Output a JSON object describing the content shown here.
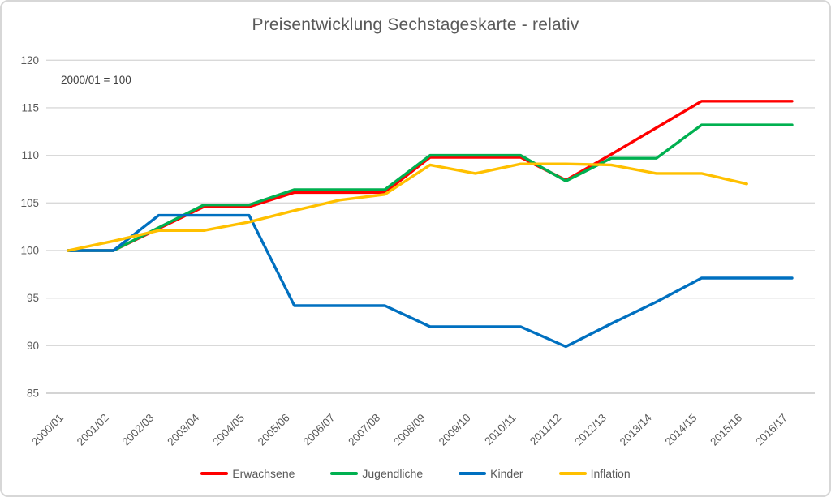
{
  "chart_data": {
    "type": "line",
    "title": "Preisentwicklung Sechstageskarte - relativ",
    "annotation": "2000/01 = 100",
    "categories": [
      "2000/01",
      "2001/02",
      "2002/03",
      "2003/04",
      "2004/05",
      "2005/06",
      "2006/07",
      "2007/08",
      "2008/09",
      "2009/10",
      "2010/11",
      "2011/12",
      "2012/13",
      "2013/14",
      "2014/15",
      "2015/16",
      "2016/17"
    ],
    "series": [
      {
        "name": "Erwachsene",
        "color": "#FF0000",
        "values": [
          100,
          100,
          102.3,
          104.6,
          104.6,
          106.1,
          106.1,
          106.1,
          109.8,
          109.8,
          109.8,
          107.4,
          110.1,
          112.9,
          115.7,
          115.7,
          115.7
        ]
      },
      {
        "name": "Jugendliche",
        "color": "#00B050",
        "values": [
          100,
          100,
          102.4,
          104.8,
          104.8,
          106.4,
          106.4,
          106.4,
          110,
          110,
          110,
          107.3,
          109.7,
          109.7,
          113.2,
          113.2,
          113.2
        ]
      },
      {
        "name": "Kinder",
        "color": "#0070C0",
        "values": [
          100,
          100,
          103.7,
          103.7,
          103.7,
          94.2,
          94.2,
          94.2,
          92,
          92,
          92,
          89.9,
          92.3,
          94.6,
          97.1,
          97.1,
          97.1
        ]
      },
      {
        "name": "Inflation",
        "color": "#FFC000",
        "values": [
          100,
          101,
          102.1,
          102.1,
          103,
          104.2,
          105.3,
          105.9,
          109,
          108.1,
          109.1,
          109.1,
          109,
          108.1,
          108.1,
          107,
          null
        ]
      }
    ],
    "ylim": [
      85,
      120
    ],
    "yticks": [
      85,
      90,
      95,
      100,
      105,
      110,
      115,
      120
    ],
    "grid": "horizontal",
    "legend_position": "bottom"
  },
  "colors": {
    "background": "#FFFFFF",
    "border": "#D7D7D7",
    "gridline": "#D9D9D9",
    "axis_line": "#C6C6C6",
    "tick_text": "#595959",
    "title_text": "#595959",
    "annotation_text": "#3F3F3F"
  }
}
